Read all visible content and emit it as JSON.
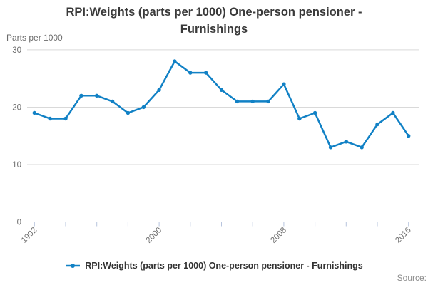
{
  "title": {
    "lines": [
      "RPI:Weights (parts per 1000) One-person pensioner -",
      "Furnishings"
    ]
  },
  "y_axis_title": "Parts per 1000",
  "legend": {
    "label": "RPI:Weights (parts per 1000) One-person pensioner - Furnishings"
  },
  "source": {
    "label": "Source:"
  },
  "colors": {
    "series": "#1181c5",
    "grid": "#d9d9d9",
    "axis": "#b7c4de",
    "tick_text": "#6e6e6e",
    "title_text": "#3a3a3a",
    "legend_text": "#333333",
    "source_text": "#8c8c8c"
  },
  "chart_data": {
    "type": "line",
    "title": "RPI:Weights (parts per 1000) One-person pensioner - Furnishings",
    "xlabel": "",
    "ylabel": "Parts per 1000",
    "x": [
      1992,
      1993,
      1994,
      1995,
      1996,
      1997,
      1998,
      1999,
      2000,
      2001,
      2002,
      2003,
      2004,
      2005,
      2006,
      2007,
      2008,
      2009,
      2010,
      2011,
      2012,
      2013,
      2014,
      2015,
      2016
    ],
    "values": [
      19,
      18,
      18,
      22,
      22,
      21,
      19,
      20,
      23,
      28,
      26,
      26,
      23,
      21,
      21,
      21,
      24,
      18,
      19,
      13,
      14,
      13,
      17,
      19,
      15
    ],
    "ylim": [
      0,
      30
    ],
    "y_ticks": [
      0,
      10,
      20,
      30
    ],
    "x_labeled_ticks": [
      1992,
      2000,
      2008,
      2016
    ],
    "x_tick_step": 2,
    "grid": "horizontal",
    "legend_position": "bottom"
  }
}
